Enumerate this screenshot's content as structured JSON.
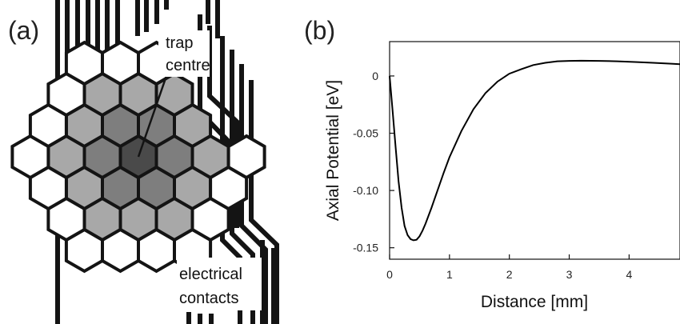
{
  "panel_a": {
    "label": "(a)",
    "annotation_trap": [
      "trap",
      "centre"
    ],
    "annotation_contacts": [
      "electrical",
      "contacts"
    ],
    "colors": {
      "outline": "#141414",
      "centre": "#4a4a4a",
      "inner_ring": "#7e7e7e",
      "middle_ring": "#a8a8a8",
      "outer_ring": "#ffffff"
    }
  },
  "panel_b": {
    "label": "(b)"
  },
  "chart_data": {
    "type": "line",
    "xlabel": "Distance [mm]",
    "ylabel": "Axial Potential [eV]",
    "xlim": [
      0,
      4.85
    ],
    "ylim": [
      -0.16,
      0.03
    ],
    "xticks": [
      0,
      1,
      2,
      3,
      4
    ],
    "yticks": [
      0,
      -0.05,
      -0.1,
      -0.15
    ],
    "ytick_labels": [
      "0",
      "-0.05",
      "-0.10",
      "-0.15"
    ],
    "grid": false,
    "series": [
      {
        "color": "#000000",
        "x": [
          0,
          0.05,
          0.1,
          0.15,
          0.2,
          0.25,
          0.3,
          0.35,
          0.4,
          0.45,
          0.5,
          0.55,
          0.6,
          0.7,
          0.8,
          0.9,
          1.0,
          1.2,
          1.4,
          1.6,
          1.8,
          2.0,
          2.2,
          2.4,
          2.6,
          2.8,
          3.0,
          3.2,
          3.5,
          3.8,
          4.1,
          4.4,
          4.7,
          4.85
        ],
        "y": [
          0.0,
          -0.03,
          -0.062,
          -0.092,
          -0.115,
          -0.131,
          -0.139,
          -0.1425,
          -0.1435,
          -0.143,
          -0.14,
          -0.135,
          -0.129,
          -0.115,
          -0.1,
          -0.085,
          -0.071,
          -0.048,
          -0.029,
          -0.015,
          -0.005,
          0.002,
          0.006,
          0.0095,
          0.0115,
          0.0128,
          0.0132,
          0.0133,
          0.0132,
          0.0128,
          0.0122,
          0.0115,
          0.0107,
          0.0103
        ]
      }
    ]
  }
}
